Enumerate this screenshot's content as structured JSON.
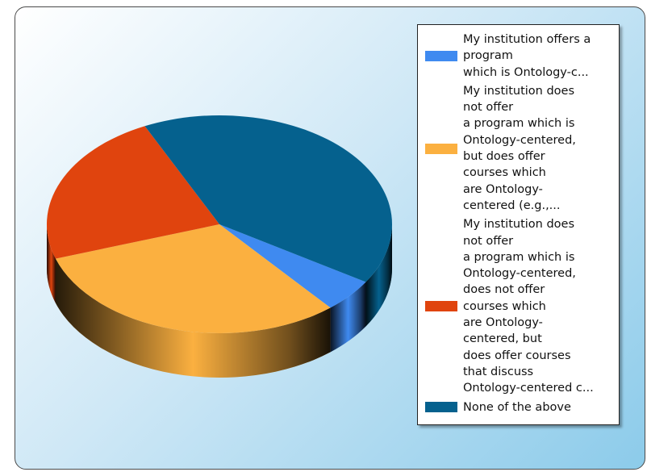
{
  "chart_data": {
    "type": "pie3d",
    "series": [
      {
        "name": "My institution offers a\nprogram\nwhich is Ontology-c...",
        "color": "#3f8af0",
        "value": 5
      },
      {
        "name": "My institution does\nnot offer\na program which is\nOntology-centered,\nbut does offer\ncourses which\nare Ontology-\ncentered (e.g.,...",
        "color": "#fbb040",
        "value": 31
      },
      {
        "name": "My institution does\nnot offer\na program which is\nOntology-centered,\ndoes not offer\ncourses which\nare Ontology-\ncentered, but\ndoes offer courses\nthat discuss\nOntology-centered c...",
        "color": "#e0440e",
        "value": 23
      },
      {
        "name": "None of the above",
        "color": "#05618e",
        "value": 41
      }
    ],
    "legend": "right"
  }
}
